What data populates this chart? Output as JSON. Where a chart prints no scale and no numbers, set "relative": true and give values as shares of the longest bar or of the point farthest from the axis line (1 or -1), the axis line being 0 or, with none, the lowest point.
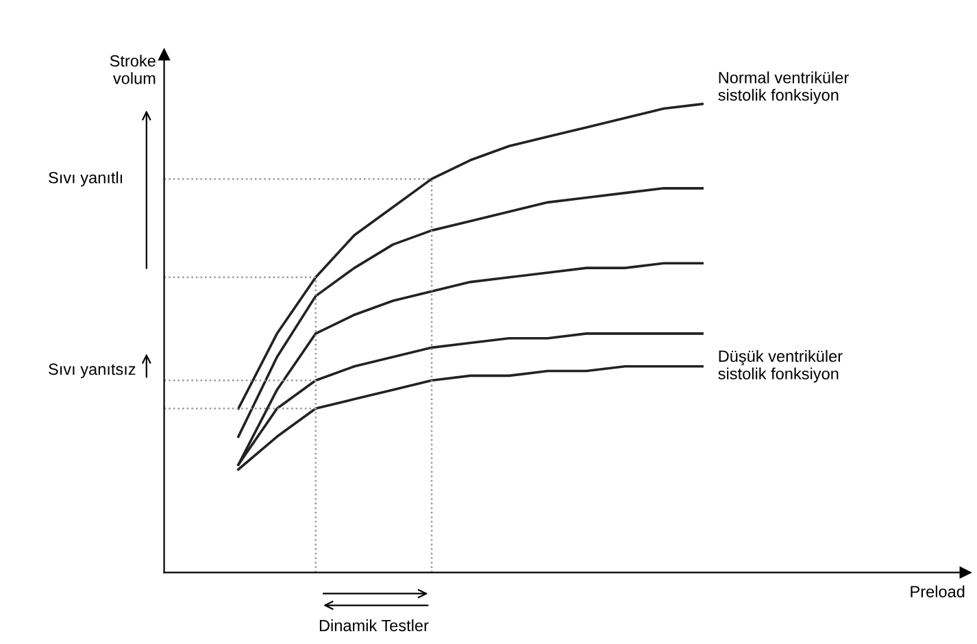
{
  "chart_data": {
    "type": "line",
    "relative": true,
    "ylabel": "Stroke\nvolum",
    "categories": [
      null,
      null,
      null,
      null,
      null,
      null,
      null,
      null,
      null,
      null,
      null,
      null,
      null
    ],
    "series": [
      {
        "name": "Normal ventriküler\nsistolik fonksiyon",
        "color": "#222222",
        "values": [
          0.35,
          0.51,
          0.63,
          0.72,
          0.78,
          0.84,
          0.88,
          0.91,
          0.93,
          0.95,
          0.97,
          0.99,
          1.0
        ]
      },
      {
        "color": "#222222",
        "values": [
          0.29,
          0.46,
          0.59,
          0.65,
          0.7,
          0.73,
          0.75,
          0.77,
          0.79,
          0.8,
          0.81,
          0.82,
          0.82
        ]
      },
      {
        "color": "#222222",
        "values": [
          0.23,
          0.39,
          0.51,
          0.55,
          0.58,
          0.6,
          0.62,
          0.63,
          0.64,
          0.65,
          0.65,
          0.66,
          0.66
        ]
      },
      {
        "color": "#222222",
        "values": [
          0.23,
          0.35,
          0.41,
          0.44,
          0.46,
          0.48,
          0.49,
          0.5,
          0.5,
          0.51,
          0.51,
          0.51,
          0.51
        ]
      },
      {
        "name": "Düşük ventriküler\nsistolik fonksiyon",
        "color": "#222222",
        "values": [
          0.22,
          0.29,
          0.35,
          0.37,
          0.39,
          0.41,
          0.42,
          0.42,
          0.43,
          0.43,
          0.44,
          0.44,
          0.44
        ]
      }
    ],
    "ref_lines": [
      {
        "axis": "y",
        "value": 0.84,
        "color": "#999999",
        "line_style": "dotted"
      },
      {
        "axis": "y",
        "value": 0.63,
        "color": "#999999",
        "line_style": "dotted"
      },
      {
        "axis": "y",
        "value": 0.41,
        "color": "#999999",
        "line_style": "dotted"
      },
      {
        "axis": "y",
        "value": 0.35,
        "color": "#999999",
        "line_style": "dotted"
      }
    ],
    "annotations": [
      "Sıvı yanıtlı",
      "Sıvı yanıtsız",
      "Dinamik Testler",
      "Preload"
    ],
    "legend": false,
    "line_style": "solid",
    "marker": "none"
  }
}
